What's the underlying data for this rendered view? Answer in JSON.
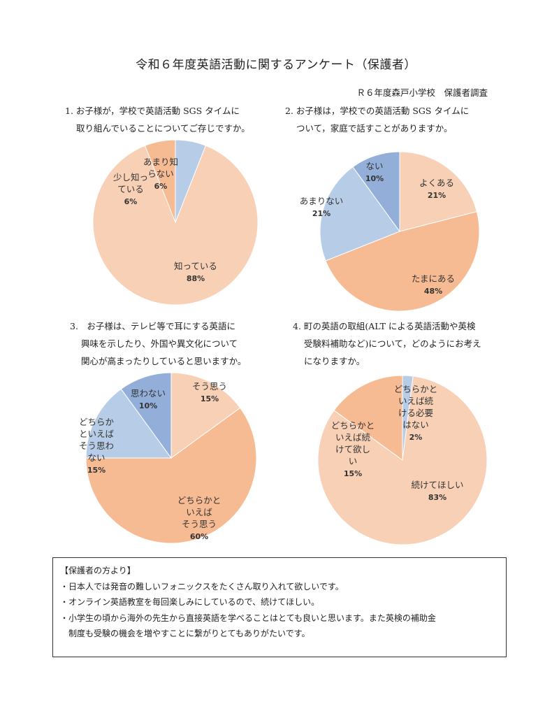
{
  "title": "令和６年度英語活動に関するアンケート（保護者）",
  "subtitle": "Ｒ６年度森戸小学校　保護者調査",
  "questions": [
    {
      "lines": [
        "1. お子様が，学校で英語活動 SGS タイムに",
        "取り組んでいることについてご存じですか。"
      ]
    },
    {
      "lines": [
        "2. お子様は，学校での英語活動 SGS タイムに",
        "ついて，家庭で話すことがありますか。"
      ]
    },
    {
      "lines": [
        "3.　お子様は、テレビ等で耳にする英語に",
        "興味を示したり、外国や異文化について",
        "関心が高まったりしていると思いますか。"
      ]
    },
    {
      "lines": [
        "4. 町の英語の取組(ALT による英語活動や英検",
        "受験料補助など)について，どのようにお考え",
        "になりますか。"
      ]
    }
  ],
  "chart_data": [
    {
      "type": "pie",
      "title": "お子様が，学校で英語活動 SGS タイムに取り組んでいることについてご存じですか。",
      "slices": [
        {
          "label": [
            "あまり知",
            "らない"
          ],
          "value": 6,
          "pct": "6%",
          "color": "#b7cce6"
        },
        {
          "label": [
            "知っている"
          ],
          "value": 88,
          "pct": "88%",
          "color": "#f8d0b5"
        },
        {
          "label": [
            "少し知っ",
            "ている"
          ],
          "value": 6,
          "pct": "6%",
          "color": "#f7bb94"
        }
      ]
    },
    {
      "type": "pie",
      "title": "お子様は，学校での英語活動 SGS タイムについて，家庭で話すことがありますか。",
      "slices": [
        {
          "label": [
            "よくある"
          ],
          "value": 21,
          "pct": "21%",
          "color": "#f8d0b5"
        },
        {
          "label": [
            "たまにある"
          ],
          "value": 48,
          "pct": "48%",
          "color": "#f7bb94"
        },
        {
          "label": [
            "あまりない"
          ],
          "value": 21,
          "pct": "21%",
          "color": "#b7cce6"
        },
        {
          "label": [
            "ない"
          ],
          "value": 10,
          "pct": "10%",
          "color": "#93afd9"
        }
      ]
    },
    {
      "type": "pie",
      "title": "お子様は、テレビ等で耳にする英語に興味を示したり、外国や異文化について関心が高まったりしていると思いますか。",
      "slices": [
        {
          "label": [
            "そう思う"
          ],
          "value": 15,
          "pct": "15%",
          "color": "#f8d0b5"
        },
        {
          "label": [
            "どちらかと",
            "いえば",
            "そう思う"
          ],
          "value": 60,
          "pct": "60%",
          "color": "#f7bb94"
        },
        {
          "label": [
            "どちらか",
            "といえば",
            "そう思わ",
            "ない"
          ],
          "value": 15,
          "pct": "15%",
          "color": "#b7cce6"
        },
        {
          "label": [
            "思わない"
          ],
          "value": 10,
          "pct": "10%",
          "color": "#93afd9"
        }
      ]
    },
    {
      "type": "pie",
      "title": "町の英語の取組(ALT による英語活動や英検受験料補助など)について，どのようにお考えになりますか。",
      "slices": [
        {
          "label": [
            "どちらかと",
            "いえば続",
            "ける必要",
            "はない"
          ],
          "value": 2,
          "pct": "2%",
          "color": "#b7cce6"
        },
        {
          "label": [
            "続けてほしい"
          ],
          "value": 83,
          "pct": "83%",
          "color": "#f8d0b5"
        },
        {
          "label": [
            "どちらかと",
            "いえば続",
            "けて欲し",
            "い"
          ],
          "value": 15,
          "pct": "15%",
          "color": "#f7bb94"
        }
      ]
    }
  ],
  "comments": {
    "header": "【保護者の方より】",
    "items": [
      [
        "・日本人では発音の難しいフォニックスをたくさん取り入れて欲しいです。"
      ],
      [
        "・オンライン英語教室を毎回楽しみにしているので、続けてほしい。"
      ],
      [
        "・小学生の頃から海外の先生から直接英語を学べることはとても良いと思います。また英検の補助金",
        "制度も受験の機会を増やすことに繋がりとてもありがたいです。"
      ]
    ]
  }
}
